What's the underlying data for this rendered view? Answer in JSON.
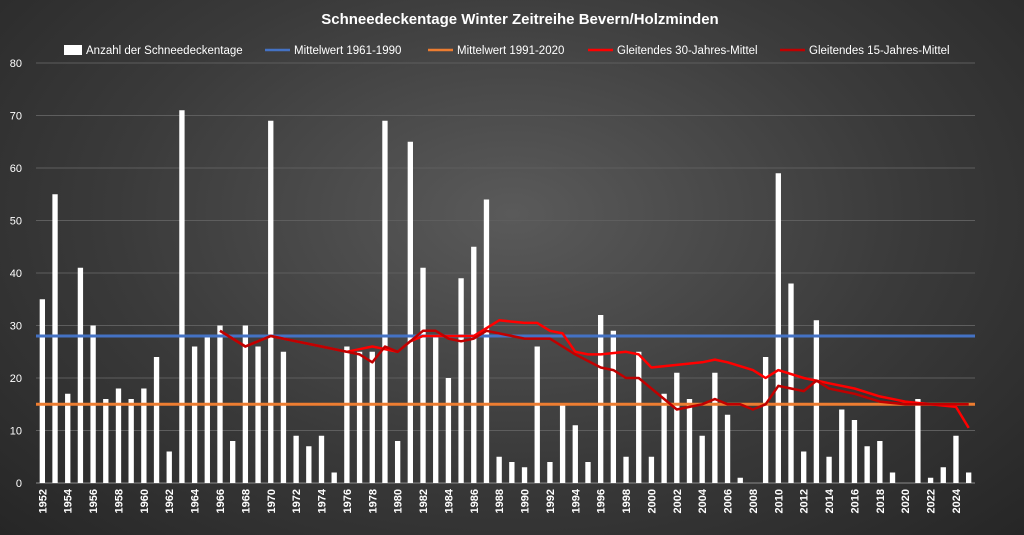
{
  "chart_data": {
    "type": "bar",
    "title": "Schneedeckentage  Winter Zeitreihe Bevern/Holzminden",
    "xlabel": "",
    "ylabel": "",
    "ylim": [
      0,
      80
    ],
    "yticks": [
      0,
      10,
      20,
      30,
      40,
      50,
      60,
      70,
      80
    ],
    "grid": true,
    "legend_position": "top",
    "x_tick_labels": [
      "1952",
      "1954",
      "1956",
      "1958",
      "1960",
      "1962",
      "1964",
      "1966",
      "1968",
      "1970",
      "1972",
      "1974",
      "1976",
      "1978",
      "1980",
      "1982",
      "1984",
      "1986",
      "1988",
      "1990",
      "1992",
      "1994",
      "1996",
      "1998",
      "2000",
      "2002",
      "2004",
      "2006",
      "2008",
      "2010",
      "2012",
      "2014",
      "2016",
      "2018",
      "2020",
      "2022",
      "2024"
    ],
    "x": [
      1952,
      1953,
      1954,
      1955,
      1956,
      1957,
      1958,
      1959,
      1960,
      1961,
      1962,
      1963,
      1964,
      1965,
      1966,
      1967,
      1968,
      1969,
      1970,
      1971,
      1972,
      1973,
      1974,
      1975,
      1976,
      1977,
      1978,
      1979,
      1980,
      1981,
      1982,
      1983,
      1984,
      1985,
      1986,
      1987,
      1988,
      1989,
      1990,
      1991,
      1992,
      1993,
      1994,
      1995,
      1996,
      1997,
      1998,
      1999,
      2000,
      2001,
      2002,
      2003,
      2004,
      2005,
      2006,
      2007,
      2008,
      2009,
      2010,
      2011,
      2012,
      2013,
      2014,
      2015,
      2016,
      2017,
      2018,
      2019,
      2020,
      2021,
      2022,
      2023,
      2024,
      2025
    ],
    "bars": {
      "name": "Anzahl der Schneedeckentage",
      "color": "#ffffff",
      "values": [
        35,
        55,
        17,
        41,
        30,
        16,
        18,
        16,
        18,
        24,
        6,
        71,
        26,
        28,
        30,
        8,
        30,
        26,
        69,
        25,
        9,
        7,
        9,
        2,
        26,
        25,
        25,
        69,
        8,
        65,
        41,
        28,
        20,
        39,
        45,
        54,
        5,
        4,
        3,
        26,
        4,
        15,
        11,
        4,
        32,
        29,
        5,
        25,
        5,
        17,
        21,
        16,
        9,
        21,
        13,
        1,
        0,
        24,
        59,
        38,
        6,
        31,
        5,
        14,
        12,
        7,
        8,
        2,
        0,
        16,
        1,
        3,
        9,
        2
      ]
    },
    "lines": [
      {
        "name": "Mittelwert 1961-1990",
        "color": "#4472c4",
        "constant": 28
      },
      {
        "name": "Mittelwert 1991-2020",
        "color": "#ed7d31",
        "constant": 15
      },
      {
        "name": "Gleitendes 30-Jahres-Mittel",
        "color": "#ff0000",
        "points": [
          [
            1966,
            29
          ],
          [
            1968,
            26
          ],
          [
            1970,
            28
          ],
          [
            1972,
            27
          ],
          [
            1974,
            26
          ],
          [
            1976,
            25
          ],
          [
            1978,
            26
          ],
          [
            1980,
            25
          ],
          [
            1981,
            27
          ],
          [
            1982,
            28
          ],
          [
            1984,
            28
          ],
          [
            1986,
            28
          ],
          [
            1988,
            31
          ],
          [
            1990,
            30.5
          ],
          [
            1991,
            30.5
          ],
          [
            1992,
            29
          ],
          [
            1993,
            28.5
          ],
          [
            1994,
            25
          ],
          [
            1995,
            24.5
          ],
          [
            1996,
            24.5
          ],
          [
            1998,
            25
          ],
          [
            1999,
            24.5
          ],
          [
            2000,
            22
          ],
          [
            2002,
            22.5
          ],
          [
            2004,
            23
          ],
          [
            2005,
            23.5
          ],
          [
            2006,
            23
          ],
          [
            2008,
            21.5
          ],
          [
            2009,
            20
          ],
          [
            2010,
            21.5
          ],
          [
            2012,
            20
          ],
          [
            2014,
            19
          ],
          [
            2016,
            18
          ],
          [
            2018,
            16.5
          ],
          [
            2020,
            15.5
          ],
          [
            2022,
            15
          ],
          [
            2024,
            14.5
          ],
          [
            2025,
            10.5
          ]
        ]
      },
      {
        "name": "Gleitendes 15-Jahres-Mittel",
        "color": "#c00000",
        "points": [
          [
            1966,
            29
          ],
          [
            1968,
            26
          ],
          [
            1970,
            28
          ],
          [
            1972,
            27
          ],
          [
            1974,
            26
          ],
          [
            1976,
            25
          ],
          [
            1977,
            24.5
          ],
          [
            1978,
            23
          ],
          [
            1979,
            26
          ],
          [
            1980,
            25
          ],
          [
            1982,
            29
          ],
          [
            1983,
            29
          ],
          [
            1984,
            27.5
          ],
          [
            1985,
            27
          ],
          [
            1986,
            27.5
          ],
          [
            1987,
            29
          ],
          [
            1988,
            28.5
          ],
          [
            1990,
            27.5
          ],
          [
            1992,
            27.5
          ],
          [
            1994,
            24.5
          ],
          [
            1996,
            22
          ],
          [
            1997,
            21.5
          ],
          [
            1998,
            20
          ],
          [
            1999,
            20
          ],
          [
            2000,
            18
          ],
          [
            2001,
            16
          ],
          [
            2002,
            14
          ],
          [
            2003,
            14.5
          ],
          [
            2004,
            15
          ],
          [
            2005,
            16
          ],
          [
            2006,
            15
          ],
          [
            2007,
            15
          ],
          [
            2008,
            14
          ],
          [
            2009,
            15
          ],
          [
            2010,
            18.5
          ],
          [
            2011,
            18
          ],
          [
            2012,
            17.5
          ],
          [
            2013,
            19.5
          ],
          [
            2014,
            18
          ],
          [
            2016,
            17
          ],
          [
            2018,
            15.5
          ],
          [
            2020,
            15
          ],
          [
            2022,
            15
          ],
          [
            2024,
            15
          ],
          [
            2025,
            15
          ]
        ]
      }
    ]
  }
}
